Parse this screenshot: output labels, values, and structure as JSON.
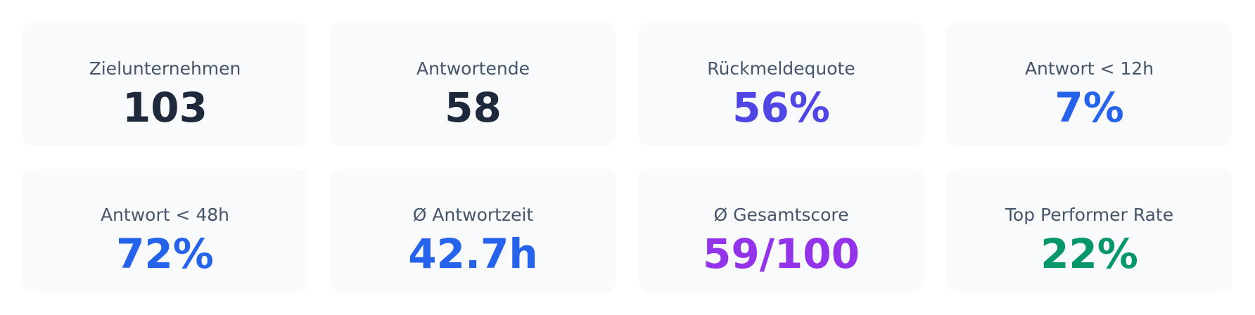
{
  "cards": [
    {
      "label": "Zielunternehmen",
      "value": "103",
      "color": "#1e293b"
    },
    {
      "label": "Antwortende",
      "value": "58",
      "color": "#1e293b"
    },
    {
      "label": "Rückmeldequote",
      "value": "56%",
      "color": "#4f46e5"
    },
    {
      "label": "Antwort < 12h",
      "value": "7%",
      "color": "#2563eb"
    },
    {
      "label": "Antwort < 48h",
      "value": "72%",
      "color": "#2563eb"
    },
    {
      "label": "Ø Antwortzeit",
      "value": "42.7h",
      "color": "#2563eb"
    },
    {
      "label": "Ø Gesamtscore",
      "value": "59/100",
      "color": "#9333ea"
    },
    {
      "label": "Top Performer Rate",
      "value": "22%",
      "color": "#059669"
    }
  ]
}
